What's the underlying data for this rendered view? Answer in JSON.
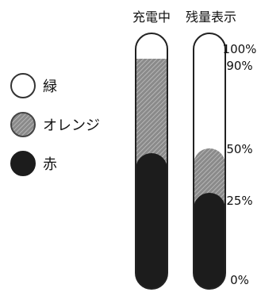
{
  "headers": {
    "charging": "充電中",
    "remaining": "残量表示"
  },
  "legend": [
    {
      "label": "緑",
      "color": "#ffffff",
      "pattern": "none",
      "icon": "white-circle-icon"
    },
    {
      "label": "オレンジ",
      "color": "#8a8a8a",
      "pattern": "hatch",
      "icon": "hatched-circle-icon"
    },
    {
      "label": "赤",
      "color": "#1c1c1c",
      "pattern": "none",
      "icon": "black-circle-icon"
    }
  ],
  "charging_bar": {
    "segments_from_bottom": [
      {
        "color_label": "赤",
        "fraction": 0.53
      },
      {
        "color_label": "オレンジ",
        "fraction": 0.37
      },
      {
        "color_label": "緑",
        "fraction": 0.1
      }
    ]
  },
  "remaining_bar": {
    "segments_from_bottom": [
      {
        "color_label": "赤",
        "fraction": 0.25
      },
      {
        "color_label": "オレンジ",
        "fraction": 0.25
      },
      {
        "color_label": "緑",
        "fraction": 0.5
      }
    ]
  },
  "scale_labels": [
    {
      "text": "100%",
      "value": 100
    },
    {
      "text": "90%",
      "value": 90
    },
    {
      "text": "50%",
      "value": 50
    },
    {
      "text": "25%",
      "value": 25
    },
    {
      "text": "0%",
      "value": 0
    }
  ],
  "colors": {
    "green_fill": "#ffffff",
    "orange_fill": "#8a8a8a",
    "red_fill": "#1c1c1c",
    "outline": "#222222"
  }
}
